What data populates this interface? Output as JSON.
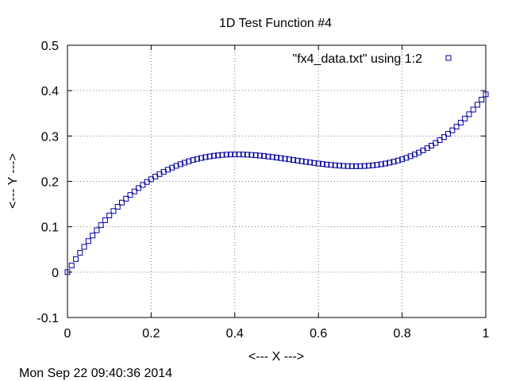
{
  "chart_data": {
    "type": "scatter",
    "title": "1D Test Function #4",
    "xlabel": "<--- X --->",
    "ylabel": "<--- Y --->",
    "xlim": [
      0,
      1
    ],
    "ylim": [
      -0.1,
      0.5
    ],
    "xticks": [
      "0",
      "0.2",
      "0.4",
      "0.6",
      "0.8",
      "1"
    ],
    "yticks": [
      "-0.1",
      "0",
      "0.1",
      "0.2",
      "0.3",
      "0.4",
      "0.5"
    ],
    "grid": true,
    "legend_position": "top-right",
    "marker": "open-square",
    "color": "#0000a0",
    "series": [
      {
        "name": "\"fx4_data.txt\" using 1:2",
        "x": [
          0,
          0.01,
          0.02,
          0.03,
          0.04,
          0.05,
          0.06,
          0.07,
          0.08,
          0.09,
          0.1,
          0.11,
          0.12,
          0.13,
          0.14,
          0.15,
          0.16,
          0.17,
          0.18,
          0.19,
          0.2,
          0.21,
          0.22,
          0.23,
          0.24,
          0.25,
          0.26,
          0.27,
          0.28,
          0.29,
          0.3,
          0.31,
          0.32,
          0.33,
          0.34,
          0.35,
          0.36,
          0.37,
          0.38,
          0.39,
          0.4,
          0.41,
          0.42,
          0.43,
          0.44,
          0.45,
          0.46,
          0.47,
          0.48,
          0.49,
          0.5,
          0.51,
          0.52,
          0.53,
          0.54,
          0.55,
          0.56,
          0.57,
          0.58,
          0.59,
          0.6,
          0.61,
          0.62,
          0.63,
          0.64,
          0.65,
          0.66,
          0.67,
          0.68,
          0.69,
          0.7,
          0.71,
          0.72,
          0.73,
          0.74,
          0.75,
          0.76,
          0.77,
          0.78,
          0.79,
          0.8,
          0.81,
          0.82,
          0.83,
          0.84,
          0.85,
          0.86,
          0.87,
          0.88,
          0.89,
          0.9,
          0.91,
          0.92,
          0.93,
          0.94,
          0.95,
          0.96,
          0.97,
          0.98,
          0.99,
          1
        ],
        "y": [
          0,
          0.0147,
          0.0288,
          0.0425,
          0.0557,
          0.0684,
          0.0806,
          0.0923,
          0.1036,
          0.1144,
          0.1248,
          0.1347,
          0.1441,
          0.1532,
          0.1618,
          0.17,
          0.1778,
          0.1852,
          0.1921,
          0.1987,
          0.2048,
          0.2106,
          0.2161,
          0.2211,
          0.2258,
          0.2302,
          0.2342,
          0.2379,
          0.2412,
          0.2443,
          0.247,
          0.2494,
          0.2516,
          0.2534,
          0.255,
          0.2564,
          0.2574,
          0.2583,
          0.2589,
          0.2593,
          0.2594,
          0.2594,
          0.2592,
          0.2588,
          0.2583,
          0.2576,
          0.2568,
          0.2559,
          0.2548,
          0.2537,
          0.2525,
          0.2512,
          0.2499,
          0.2486,
          0.2472,
          0.2458,
          0.2445,
          0.2431,
          0.2418,
          0.2405,
          0.2393,
          0.2382,
          0.2371,
          0.2362,
          0.2354,
          0.2347,
          0.2341,
          0.2337,
          0.2335,
          0.2334,
          0.2336,
          0.2339,
          0.2345,
          0.2353,
          0.2364,
          0.2377,
          0.2393,
          0.2412,
          0.2434,
          0.2459,
          0.2487,
          0.2519,
          0.2554,
          0.2593,
          0.2636,
          0.2682,
          0.2732,
          0.2787,
          0.2846,
          0.2909,
          0.2976,
          0.3048,
          0.3125,
          0.3206,
          0.3293,
          0.3384,
          0.348,
          0.3582,
          0.3689,
          0.3801,
          0.3918
        ]
      }
    ]
  },
  "timestamp": "Mon Sep 22 09:40:36 2014"
}
